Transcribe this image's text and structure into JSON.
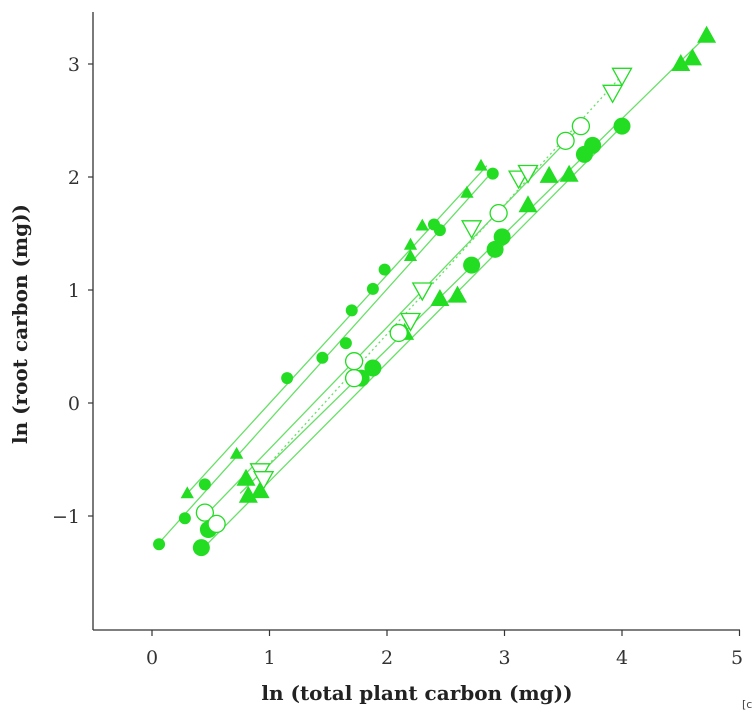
{
  "chart_data": {
    "type": "scatter",
    "title": "",
    "xlabel": "ln (total plant carbon (mg))",
    "ylabel": "ln (root carbon (mg))",
    "xlim": [
      -0.5,
      5
    ],
    "ylim": [
      -2,
      3.4
    ],
    "x_ticks": [
      "0",
      "1",
      "2",
      "3",
      "4",
      "5"
    ],
    "y_ticks": [
      "−1",
      "0",
      "1",
      "2",
      "3"
    ],
    "corner_note": "[c",
    "colors": {
      "filled": "#22dd22",
      "open_stroke": "#22dd22",
      "line": "#66e066",
      "axis": "#333333"
    },
    "series": [
      {
        "marker": "circle-small",
        "fill": true,
        "line_style": "solid",
        "fit": [
          0.05,
          -1.25,
          2.9,
          2.05
        ],
        "x": [
          0.06,
          0.28,
          0.45,
          1.15,
          1.45,
          1.65,
          1.7,
          1.88,
          1.98,
          2.4,
          2.45,
          2.9
        ],
        "y": [
          -1.25,
          -1.02,
          -0.72,
          0.22,
          0.4,
          0.53,
          0.82,
          1.01,
          1.18,
          1.58,
          1.53,
          2.03
        ]
      },
      {
        "marker": "triangle-small",
        "fill": true,
        "line_style": "solid",
        "fit": [
          0.3,
          -0.8,
          2.85,
          2.1
        ],
        "x": [
          0.3,
          0.72,
          2.2,
          2.2,
          2.3,
          2.68,
          2.8
        ],
        "y": [
          -0.8,
          -0.45,
          1.3,
          1.4,
          1.57,
          1.86,
          2.1
        ]
      },
      {
        "marker": "circle-large",
        "fill": true,
        "line_style": "solid",
        "fit": [
          0.42,
          -1.3,
          4.0,
          2.45
        ],
        "x": [
          0.42,
          0.48,
          1.78,
          1.88,
          2.72,
          2.92,
          2.98,
          3.68,
          3.75,
          4.0
        ],
        "y": [
          -1.28,
          -1.12,
          0.22,
          0.31,
          1.22,
          1.36,
          1.47,
          2.2,
          2.28,
          2.45
        ]
      },
      {
        "marker": "triangle-large",
        "fill": true,
        "line_style": "solid",
        "fit": [
          0.75,
          -0.8,
          4.72,
          3.25
        ],
        "x": [
          0.8,
          0.82,
          0.92,
          2.15,
          2.45,
          2.6,
          3.2,
          3.38,
          3.55,
          4.5,
          4.6,
          4.72
        ],
        "y": [
          -0.67,
          -0.82,
          -0.78,
          0.62,
          0.92,
          0.95,
          1.75,
          2.01,
          2.02,
          3.0,
          3.05,
          3.25
        ]
      },
      {
        "marker": "circle-open",
        "fill": false,
        "line_style": "solid",
        "fit": [
          0.45,
          -1.0,
          3.65,
          2.45
        ],
        "x": [
          0.45,
          0.55,
          1.72,
          1.72,
          2.1,
          2.95,
          3.52,
          3.65
        ],
        "y": [
          -0.97,
          -1.07,
          0.22,
          0.37,
          0.62,
          1.68,
          2.32,
          2.45
        ]
      },
      {
        "marker": "triangle-open",
        "fill": false,
        "line_style": "dotted",
        "fit": [
          0.9,
          -0.65,
          4.0,
          2.9
        ],
        "x": [
          0.92,
          0.95,
          2.2,
          2.3,
          2.72,
          3.12,
          3.2,
          3.92,
          4.0
        ],
        "y": [
          -0.6,
          -0.67,
          0.73,
          1.0,
          1.55,
          1.99,
          2.04,
          2.75,
          2.9
        ]
      }
    ]
  }
}
